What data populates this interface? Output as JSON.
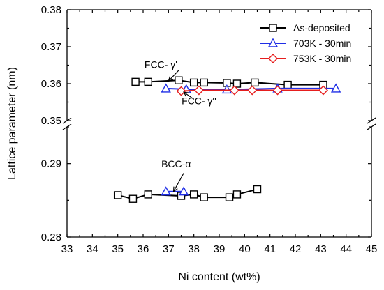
{
  "chart_data": {
    "type": "line",
    "xlabel": "Ni content (wt%)",
    "ylabel": "Lattice parameter (nm)",
    "x_ticks": [
      33,
      34,
      35,
      36,
      37,
      38,
      39,
      40,
      41,
      42,
      43,
      44,
      45
    ],
    "xlim": [
      33,
      45
    ],
    "y_upper_ticks": [
      "0.35",
      "0.36",
      "0.37",
      "0.38"
    ],
    "y_upper_lim": [
      0.35,
      0.38
    ],
    "y_lower_ticks": [
      "0.28",
      "0.29"
    ],
    "y_lower_lim": [
      0.28,
      0.295
    ],
    "axis_break": true,
    "grid": false,
    "legend_position": "top-right",
    "series": [
      {
        "name": "As-deposited",
        "color": "#000000",
        "marker": "square",
        "segments": [
          {
            "x": [
              35.7,
              36.2,
              37.4,
              38.0,
              38.4,
              39.3,
              39.7,
              40.4,
              41.7,
              43.1
            ],
            "y": [
              0.3605,
              0.3605,
              0.3609,
              0.3603,
              0.3603,
              0.3602,
              0.36,
              0.3603,
              0.3597,
              0.3597
            ]
          },
          {
            "x": [
              35.0,
              35.6,
              36.2,
              37.5,
              38.0,
              38.4,
              39.4,
              39.7,
              40.5
            ],
            "y": [
              0.2857,
              0.2852,
              0.2858,
              0.2856,
              0.2858,
              0.2854,
              0.2854,
              0.2858,
              0.2865
            ]
          }
        ]
      },
      {
        "name": "703K - 30min",
        "color": "#1f2ee6",
        "marker": "triangle",
        "segments": [
          {
            "x": [
              36.9,
              37.7,
              39.3,
              41.3,
              43.6
            ],
            "y": [
              0.3587,
              0.3585,
              0.3584,
              0.3587,
              0.3587
            ]
          },
          {
            "x": [
              36.9,
              37.6
            ],
            "y": [
              0.2862,
              0.2862
            ]
          }
        ]
      },
      {
        "name": "753K - 30min",
        "color": "#e61e1e",
        "marker": "diamond",
        "segments": [
          {
            "x": [
              37.5,
              38.2,
              39.6,
              40.3,
              41.3,
              43.1
            ],
            "y": [
              0.358,
              0.3582,
              0.3582,
              0.3582,
              0.3582,
              0.3582
            ]
          }
        ]
      }
    ],
    "annotations": [
      {
        "text": "FCC- γ'",
        "points_to_x": 37.0,
        "points_to_y": 0.3607,
        "label_x": 36.7,
        "label_y": 0.3642,
        "arrow_from_x": 37.4,
        "arrow_from_y": 0.3636
      },
      {
        "text": "FCC- γ''",
        "points_to_x": 37.6,
        "points_to_y": 0.3577,
        "label_x": 38.2,
        "label_y": 0.3544,
        "arrow_from_x": 38.0,
        "arrow_from_y": 0.3558
      },
      {
        "text": "BCC-α",
        "points_to_x": 37.2,
        "points_to_y": 0.2862,
        "label_x": 37.3,
        "label_y": 0.2895,
        "arrow_from_x": 37.6,
        "arrow_from_y": 0.2887
      }
    ]
  }
}
